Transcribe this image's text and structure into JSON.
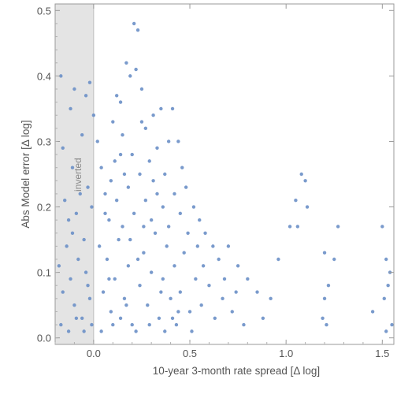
{
  "chart_data": {
    "type": "scatter",
    "xlabel": "10-year 3-month rate spread [Δ log]",
    "ylabel": "Abs Model error [Δ log]",
    "xlim": [
      -0.2,
      1.56
    ],
    "ylim": [
      -0.01,
      0.51
    ],
    "x_ticks": [
      "0.0",
      "0.5",
      "1.0",
      "1.5"
    ],
    "y_ticks": [
      "0.0",
      "0.1",
      "0.2",
      "0.3",
      "0.4",
      "0.5"
    ],
    "shaded_region": {
      "x_from": -0.2,
      "x_to": 0.0,
      "label": "inverted"
    },
    "grid": false,
    "point_color": "#6a8fc7",
    "shade_color": "#e4e4e4",
    "points": [
      [
        -0.17,
        0.4
      ],
      [
        -0.16,
        0.29
      ],
      [
        -0.12,
        0.35
      ],
      [
        -0.1,
        0.38
      ],
      [
        -0.06,
        0.31
      ],
      [
        -0.04,
        0.37
      ],
      [
        -0.02,
        0.39
      ],
      [
        0.0,
        0.34
      ],
      [
        -0.15,
        0.21
      ],
      [
        -0.13,
        0.18
      ],
      [
        -0.11,
        0.26
      ],
      [
        -0.09,
        0.19
      ],
      [
        -0.07,
        0.22
      ],
      [
        -0.05,
        0.15
      ],
      [
        -0.03,
        0.23
      ],
      [
        -0.01,
        0.2
      ],
      [
        -0.18,
        0.11
      ],
      [
        -0.16,
        0.07
      ],
      [
        -0.14,
        0.14
      ],
      [
        -0.12,
        0.09
      ],
      [
        -0.1,
        0.05
      ],
      [
        -0.08,
        0.12
      ],
      [
        -0.06,
        0.03
      ],
      [
        -0.04,
        0.1
      ],
      [
        -0.02,
        0.06
      ],
      [
        -0.01,
        0.02
      ],
      [
        -0.17,
        0.02
      ],
      [
        -0.13,
        0.01
      ],
      [
        -0.09,
        0.03
      ],
      [
        -0.05,
        0.01
      ],
      [
        -0.03,
        0.08
      ],
      [
        -0.11,
        0.16
      ],
      [
        0.02,
        0.3
      ],
      [
        0.04,
        0.26
      ],
      [
        0.06,
        0.22
      ],
      [
        0.08,
        0.18
      ],
      [
        0.1,
        0.33
      ],
      [
        0.12,
        0.37
      ],
      [
        0.14,
        0.28
      ],
      [
        0.15,
        0.31
      ],
      [
        0.17,
        0.42
      ],
      [
        0.19,
        0.4
      ],
      [
        0.21,
        0.48
      ],
      [
        0.23,
        0.47
      ],
      [
        0.22,
        0.41
      ],
      [
        0.25,
        0.38
      ],
      [
        0.27,
        0.32
      ],
      [
        0.29,
        0.27
      ],
      [
        0.31,
        0.34
      ],
      [
        0.33,
        0.29
      ],
      [
        0.35,
        0.35
      ],
      [
        0.37,
        0.25
      ],
      [
        0.39,
        0.3
      ],
      [
        0.41,
        0.35
      ],
      [
        0.44,
        0.3
      ],
      [
        0.46,
        0.26
      ],
      [
        0.48,
        0.23
      ],
      [
        0.52,
        0.2
      ],
      [
        0.55,
        0.18
      ],
      [
        0.58,
        0.16
      ],
      [
        0.62,
        0.14
      ],
      [
        0.65,
        0.12
      ],
      [
        0.7,
        0.14
      ],
      [
        0.75,
        0.11
      ],
      [
        0.8,
        0.09
      ],
      [
        0.85,
        0.07
      ],
      [
        0.92,
        0.06
      ],
      [
        0.96,
        0.12
      ],
      [
        1.02,
        0.17
      ],
      [
        1.05,
        0.21
      ],
      [
        1.08,
        0.25
      ],
      [
        1.1,
        0.24
      ],
      [
        1.11,
        0.2
      ],
      [
        1.06,
        0.17
      ],
      [
        1.2,
        0.13
      ],
      [
        1.25,
        0.12
      ],
      [
        1.27,
        0.17
      ],
      [
        1.22,
        0.08
      ],
      [
        1.2,
        0.06
      ],
      [
        1.19,
        0.03
      ],
      [
        1.21,
        0.02
      ],
      [
        1.45,
        0.04
      ],
      [
        1.5,
        0.17
      ],
      [
        1.52,
        0.12
      ],
      [
        1.53,
        0.08
      ],
      [
        1.51,
        0.06
      ],
      [
        1.54,
        0.1
      ],
      [
        1.52,
        0.01
      ],
      [
        1.55,
        0.02
      ],
      [
        0.05,
        0.07
      ],
      [
        0.07,
        0.12
      ],
      [
        0.09,
        0.04
      ],
      [
        0.11,
        0.09
      ],
      [
        0.13,
        0.15
      ],
      [
        0.16,
        0.06
      ],
      [
        0.18,
        0.11
      ],
      [
        0.2,
        0.02
      ],
      [
        0.24,
        0.08
      ],
      [
        0.26,
        0.13
      ],
      [
        0.28,
        0.05
      ],
      [
        0.3,
        0.1
      ],
      [
        0.32,
        0.16
      ],
      [
        0.34,
        0.03
      ],
      [
        0.36,
        0.09
      ],
      [
        0.38,
        0.14
      ],
      [
        0.4,
        0.06
      ],
      [
        0.42,
        0.11
      ],
      [
        0.43,
        0.02
      ],
      [
        0.45,
        0.07
      ],
      [
        0.47,
        0.13
      ],
      [
        0.5,
        0.04
      ],
      [
        0.53,
        0.09
      ],
      [
        0.56,
        0.05
      ],
      [
        0.6,
        0.08
      ],
      [
        0.63,
        0.03
      ],
      [
        0.67,
        0.06
      ],
      [
        0.72,
        0.04
      ],
      [
        0.78,
        0.02
      ],
      [
        0.88,
        0.03
      ],
      [
        0.03,
        0.14
      ],
      [
        0.06,
        0.19
      ],
      [
        0.09,
        0.24
      ],
      [
        0.12,
        0.21
      ],
      [
        0.15,
        0.17
      ],
      [
        0.18,
        0.23
      ],
      [
        0.21,
        0.19
      ],
      [
        0.24,
        0.25
      ],
      [
        0.27,
        0.21
      ],
      [
        0.3,
        0.18
      ],
      [
        0.33,
        0.22
      ],
      [
        0.36,
        0.2
      ],
      [
        0.39,
        0.17
      ],
      [
        0.42,
        0.22
      ],
      [
        0.45,
        0.19
      ],
      [
        0.49,
        0.16
      ],
      [
        0.54,
        0.14
      ],
      [
        0.04,
        0.01
      ],
      [
        0.1,
        0.02
      ],
      [
        0.14,
        0.03
      ],
      [
        0.22,
        0.01
      ],
      [
        0.29,
        0.02
      ],
      [
        0.37,
        0.01
      ],
      [
        0.44,
        0.04
      ],
      [
        0.51,
        0.01
      ],
      [
        0.08,
        0.09
      ],
      [
        0.17,
        0.05
      ],
      [
        0.23,
        0.12
      ],
      [
        0.35,
        0.07
      ],
      [
        0.41,
        0.03
      ],
      [
        0.57,
        0.11
      ],
      [
        0.68,
        0.09
      ],
      [
        0.74,
        0.07
      ],
      [
        0.19,
        0.15
      ],
      [
        0.26,
        0.17
      ],
      [
        0.31,
        0.24
      ],
      [
        0.2,
        0.28
      ],
      [
        0.14,
        0.36
      ],
      [
        0.11,
        0.27
      ],
      [
        0.16,
        0.25
      ],
      [
        0.25,
        0.33
      ]
    ]
  }
}
